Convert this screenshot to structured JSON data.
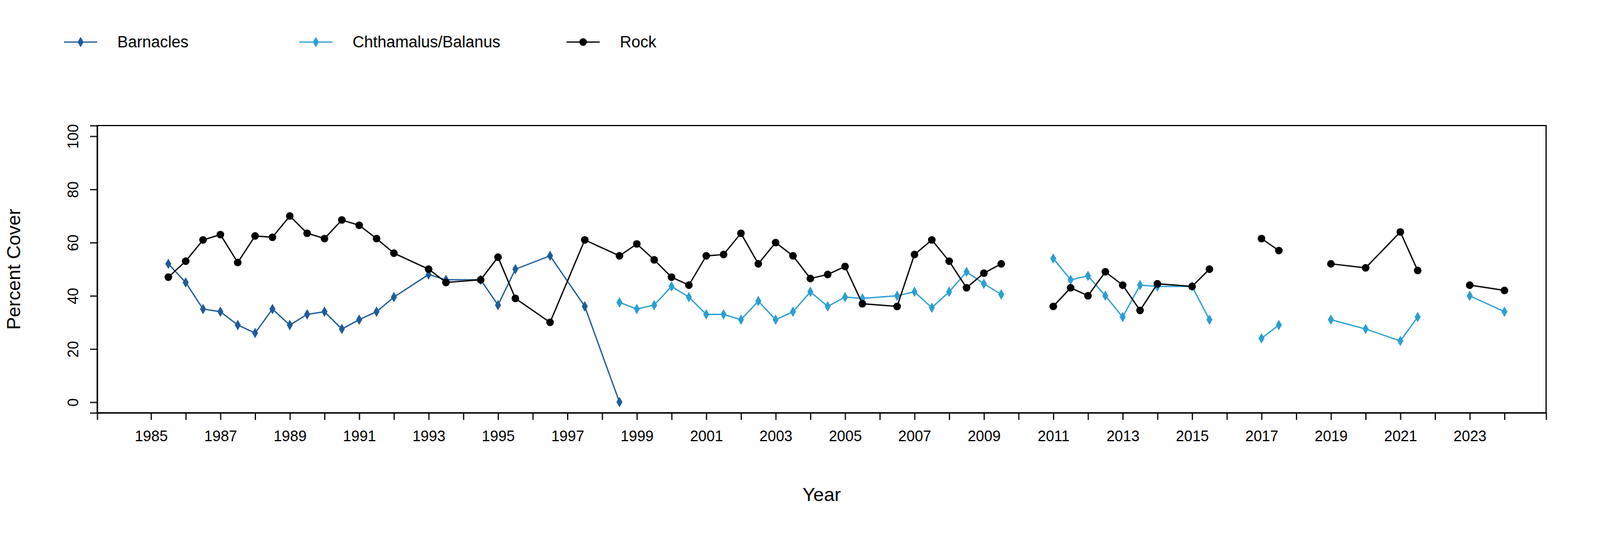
{
  "chart_data": {
    "type": "line",
    "x_label": "Year",
    "y_label": "Percent Cover",
    "legend": "top-left",
    "grid": false,
    "x": [
      1985.5,
      1986,
      1986.5,
      1987,
      1987.5,
      1988,
      1988.5,
      1989,
      1989.5,
      1990,
      1990.5,
      1991,
      1991.5,
      1992,
      1993,
      1993.5,
      1994.5,
      1995,
      1995.5,
      1996.5,
      1997.5,
      1998.5,
      1999,
      1999.5,
      2000,
      2000.5,
      2001,
      2001.5,
      2002,
      2002.5,
      2003,
      2003.5,
      2004,
      2004.5,
      2005,
      2005.5,
      2006.5,
      2007,
      2007.5,
      2008,
      2008.5,
      2009,
      2009.5,
      2010,
      2011,
      2011.5,
      2012,
      2012.5,
      2013,
      2013.5,
      2014,
      2015,
      2015.5,
      2016,
      2017,
      2017.5,
      2018,
      2019,
      2020,
      2021,
      2021.5,
      2022,
      2023,
      2024
    ],
    "series": [
      {
        "name": "Barnacles",
        "color": "#1f5c99",
        "marker": "diamond",
        "values": [
          52,
          45,
          35,
          34,
          29,
          26,
          35,
          29,
          33,
          34,
          27.5,
          31,
          34,
          39.5,
          48,
          46,
          46,
          36.5,
          50,
          55,
          36,
          0,
          null,
          null,
          null,
          null,
          null,
          null,
          null,
          null,
          null,
          null,
          null,
          null,
          null,
          null,
          null,
          null,
          null,
          null,
          null,
          null,
          null,
          null,
          null,
          null,
          null,
          null,
          null,
          null,
          null,
          null,
          null,
          null,
          null,
          null,
          null,
          null,
          null,
          null,
          null,
          null,
          null,
          null
        ]
      },
      {
        "name": "Chthamalus/Balanus",
        "color": "#2b9fd3",
        "marker": "diamond",
        "values": [
          null,
          null,
          null,
          null,
          null,
          null,
          null,
          null,
          null,
          null,
          null,
          null,
          null,
          null,
          null,
          null,
          null,
          null,
          null,
          null,
          null,
          37.5,
          35,
          36.5,
          43.5,
          39.5,
          33,
          33,
          31,
          38,
          31,
          34,
          41.5,
          36,
          39.5,
          39,
          40,
          41.5,
          35.5,
          41.5,
          49,
          44.5,
          40.5,
          null,
          54,
          46,
          47.5,
          40,
          32,
          44,
          43.5,
          43.5,
          31,
          null,
          24,
          29,
          null,
          31,
          27.5,
          23,
          32,
          null,
          40,
          34
        ]
      },
      {
        "name": "Rock",
        "color": "#000000",
        "marker": "circle",
        "values": [
          47,
          53,
          61,
          63,
          52.5,
          62.5,
          62,
          70,
          63.5,
          61.5,
          68.5,
          66.5,
          61.5,
          56,
          50,
          45,
          46,
          54.5,
          39,
          30,
          61,
          55,
          59.5,
          53.5,
          47,
          44,
          55,
          55.5,
          63.5,
          52,
          60,
          55,
          46.5,
          48,
          51,
          37,
          36,
          55.5,
          61,
          53,
          43,
          48.5,
          52,
          null,
          36,
          43,
          40,
          49,
          44,
          34.5,
          44.5,
          43.5,
          50,
          null,
          61.5,
          57,
          null,
          52,
          50.5,
          64,
          49.5,
          null,
          44,
          42
        ]
      }
    ],
    "xlim": [
      1983.45,
      2025.2
    ],
    "ylim": [
      -4,
      104
    ],
    "xticks": [
      1985,
      {
        "value": 1986,
        "label": null
      },
      1987,
      {
        "value": 1988,
        "label": null
      },
      1989,
      {
        "value": 1990,
        "label": null
      },
      1991,
      {
        "value": 1992,
        "label": null
      },
      1993,
      {
        "value": 1994,
        "label": null
      },
      1995,
      {
        "value": 1996,
        "label": null
      },
      1997,
      {
        "value": 1998,
        "label": null
      },
      1999,
      {
        "value": 2000,
        "label": null
      },
      2001,
      {
        "value": 2002,
        "label": null
      },
      2003,
      {
        "value": 2004,
        "label": null
      },
      2005,
      {
        "value": 2006,
        "label": null
      },
      2007,
      {
        "value": 2008,
        "label": null
      },
      2009,
      {
        "value": 2010,
        "label": null
      },
      2011,
      {
        "value": 2012,
        "label": null
      },
      2013,
      {
        "value": 2014,
        "label": null
      },
      2015,
      {
        "value": 2016,
        "label": null
      },
      2017,
      {
        "value": 2018,
        "label": null
      },
      2019,
      {
        "value": 2020,
        "label": null
      },
      2021,
      {
        "value": 2022,
        "label": null
      },
      2023,
      {
        "value": 2024,
        "label": null
      }
    ],
    "yticks": [
      0,
      20,
      40,
      60,
      80,
      100
    ]
  }
}
